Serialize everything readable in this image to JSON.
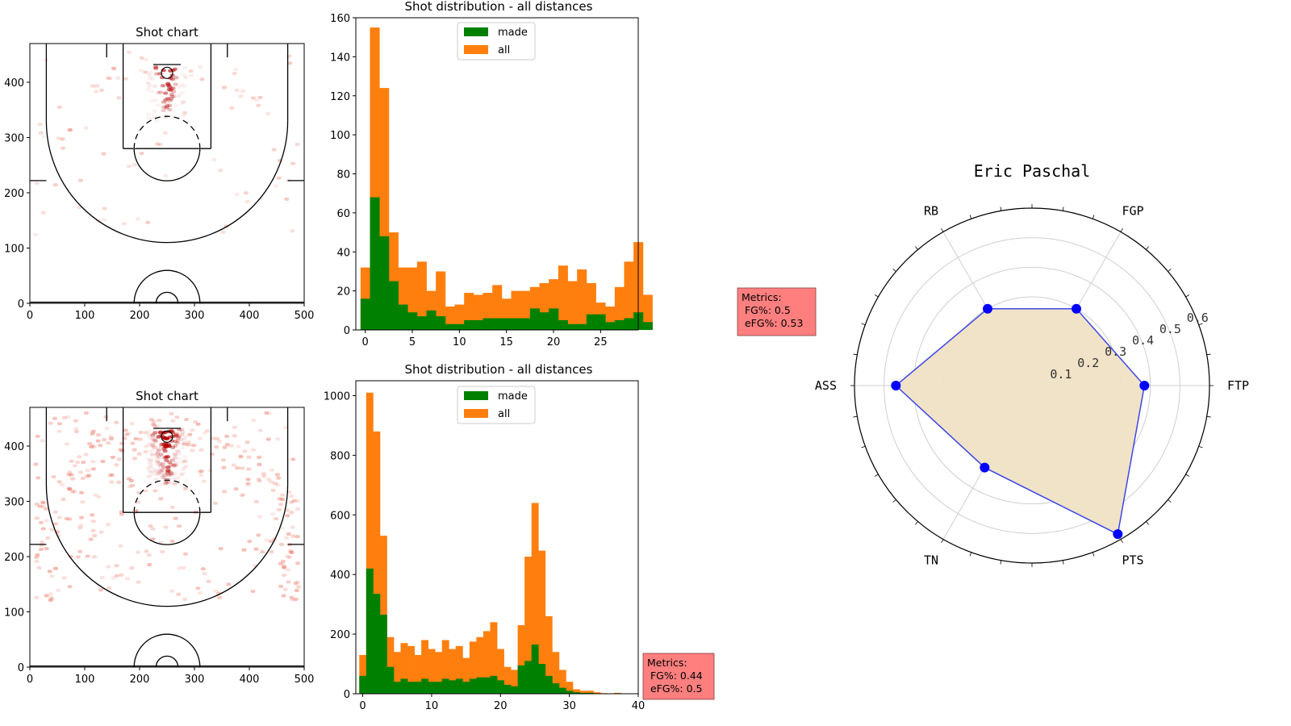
{
  "chart_data": [
    {
      "id": "shot_chart_top",
      "type": "heatmap",
      "title": "Shot chart",
      "xlim": [
        0,
        500
      ],
      "ylim": [
        0,
        470
      ],
      "x_ticks": [
        0,
        100,
        200,
        300,
        400,
        500
      ],
      "y_ticks": [
        0,
        100,
        200,
        300,
        400
      ],
      "colormap": "Reds",
      "density": "sparse"
    },
    {
      "id": "hist_top",
      "type": "bar",
      "title": "Shot distribution - all distances",
      "xlim": [
        -1,
        29
      ],
      "ylim": [
        0,
        160
      ],
      "x_ticks": [
        0,
        5,
        10,
        15,
        20,
        25
      ],
      "y_ticks": [
        0,
        20,
        40,
        60,
        80,
        100,
        120,
        140,
        160
      ],
      "bin_start": 0,
      "bin_width": 1,
      "legend_position": "upper center",
      "series": [
        {
          "name": "all",
          "color": "#ff7f0e",
          "values": [
            32,
            155,
            124,
            50,
            32,
            32,
            35,
            20,
            30,
            12,
            13,
            19,
            18,
            19,
            23,
            16,
            20,
            20,
            22,
            24,
            26,
            33,
            25,
            31,
            24,
            14,
            12,
            22,
            35,
            45,
            18
          ]
        },
        {
          "name": "made",
          "color": "#008000",
          "values": [
            16,
            68,
            48,
            25,
            13,
            9,
            7,
            10,
            7,
            3,
            3,
            5,
            5,
            6,
            6,
            6,
            6,
            6,
            11,
            9,
            11,
            5,
            3,
            3,
            8,
            8,
            4,
            5,
            6,
            9,
            4
          ]
        }
      ]
    },
    {
      "id": "shot_chart_bottom",
      "type": "heatmap",
      "title": "Shot chart",
      "xlim": [
        0,
        500
      ],
      "ylim": [
        0,
        470
      ],
      "x_ticks": [
        0,
        100,
        200,
        300,
        400,
        500
      ],
      "y_ticks": [
        0,
        100,
        200,
        300,
        400
      ],
      "colormap": "Reds",
      "density": "dense"
    },
    {
      "id": "hist_bottom",
      "type": "bar",
      "title": "Shot distribution - all distances",
      "xlim": [
        -1,
        40
      ],
      "ylim": [
        0,
        1050
      ],
      "x_ticks": [
        0,
        10,
        20,
        30,
        40
      ],
      "y_ticks": [
        0,
        200,
        400,
        600,
        800,
        1000
      ],
      "bin_start": 0,
      "bin_width": 1,
      "legend_position": "upper center",
      "series": [
        {
          "name": "all",
          "color": "#ff7f0e",
          "values": [
            130,
            1010,
            880,
            530,
            190,
            140,
            170,
            160,
            130,
            180,
            150,
            140,
            180,
            150,
            160,
            120,
            175,
            190,
            210,
            240,
            150,
            90,
            80,
            230,
            460,
            640,
            480,
            260,
            140,
            80,
            40,
            15,
            10,
            10,
            5,
            2,
            1,
            3,
            1,
            1
          ]
        },
        {
          "name": "made",
          "color": "#008000",
          "values": [
            60,
            420,
            335,
            265,
            90,
            40,
            50,
            40,
            40,
            50,
            40,
            40,
            50,
            45,
            50,
            40,
            50,
            55,
            55,
            60,
            45,
            30,
            25,
            95,
            110,
            165,
            100,
            60,
            35,
            20,
            10,
            5,
            3,
            3,
            1,
            0,
            0,
            1,
            0,
            0
          ]
        }
      ]
    },
    {
      "id": "radar",
      "type": "radar",
      "title": "Eric Paschal",
      "axes": [
        "FTP",
        "FGP",
        "RB",
        "ASS",
        "TN",
        "PTS"
      ],
      "values": [
        0.38,
        0.3,
        0.3,
        0.46,
        0.32,
        0.58
      ],
      "r_max": 0.6,
      "r_ticks": [
        "0.1",
        "0.2",
        "0.3",
        "0.4",
        "0.5",
        "0.6"
      ],
      "line_color": "#3d47e6",
      "point_color": "#0000ff",
      "fill_color": "#f0e2c4"
    }
  ],
  "metrics": [
    {
      "id": "metrics_top",
      "lines": [
        "Metrics:",
        " FG%: 0.5",
        " eFG%: 0.53"
      ],
      "bg_color": "#ff7f7f"
    },
    {
      "id": "metrics_bottom",
      "lines": [
        "Metrics:",
        " FG%: 0.44",
        " eFG%: 0.5"
      ],
      "bg_color": "#ff7f7f"
    }
  ]
}
